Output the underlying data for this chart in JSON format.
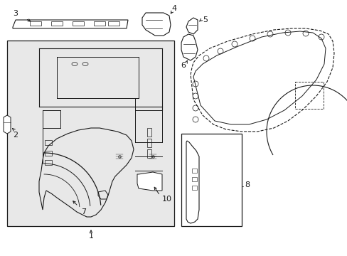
{
  "bg_color": "#ffffff",
  "line_color": "#1a1a1a",
  "gray_fill": "#e8e8e8",
  "white": "#ffffff",
  "figsize": [
    4.89,
    3.6
  ],
  "dpi": 100
}
